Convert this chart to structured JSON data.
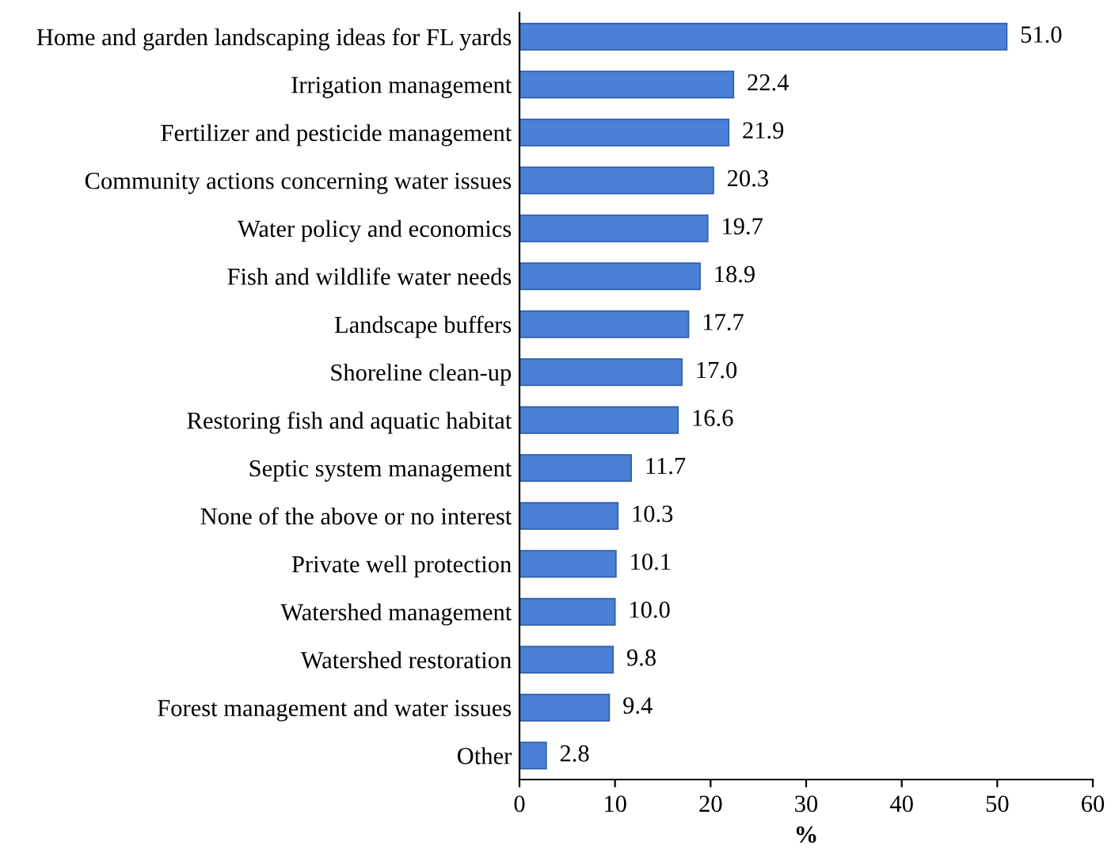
{
  "chart_data": {
    "type": "bar",
    "orientation": "horizontal",
    "xlabel": "%",
    "categories": [
      "Home and garden landscaping ideas for FL yards",
      "Irrigation management",
      "Fertilizer and pesticide management",
      "Community actions concerning water issues",
      "Water policy and economics",
      "Fish and wildlife water needs",
      "Landscape buffers",
      "Shoreline clean-up",
      "Restoring fish and aquatic habitat",
      "Septic system management",
      "None of the above or no interest",
      "Private well protection",
      "Watershed management",
      "Watershed restoration",
      "Forest management and water issues",
      "Other"
    ],
    "values": [
      51.0,
      22.4,
      21.9,
      20.3,
      19.7,
      18.9,
      17.7,
      17.0,
      16.6,
      11.7,
      10.3,
      10.1,
      10.0,
      9.8,
      9.4,
      2.8
    ],
    "value_labels": [
      "51.0",
      "22.4",
      "21.9",
      "20.3",
      "19.7",
      "18.9",
      "17.7",
      "17.0",
      "16.6",
      "11.7",
      "10.3",
      "10.1",
      "10.0",
      "9.8",
      "9.4",
      "2.8"
    ],
    "color": "#4a80d6",
    "xlim": [
      0,
      60
    ],
    "xticks": [
      0,
      10,
      20,
      30,
      40,
      50,
      60
    ],
    "grid": false,
    "legend": false
  }
}
